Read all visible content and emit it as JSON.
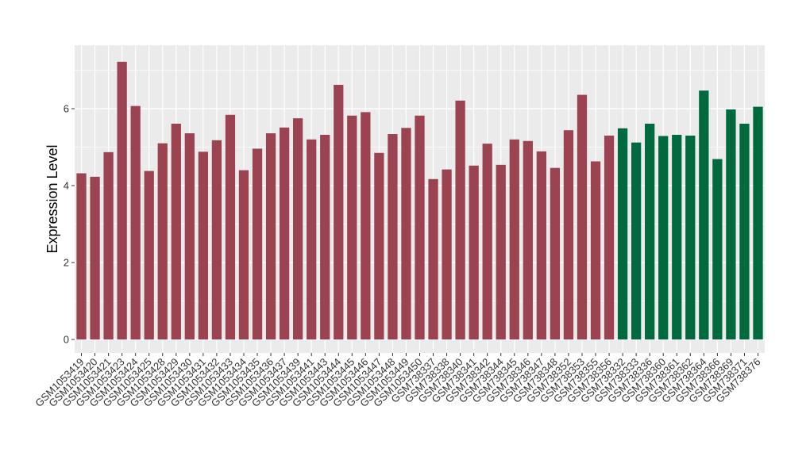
{
  "chart_data": {
    "type": "bar",
    "ylabel": "Expression Level",
    "xlabel": "",
    "ylim": [
      -0.35,
      7.65
    ],
    "yticks": [
      0,
      2,
      4,
      6
    ],
    "grid": true,
    "colors": {
      "group1": "#9b4350",
      "group2": "#00693e",
      "panel": "#ebebeb",
      "gridline": "#ffffff"
    },
    "categories": [
      "GSM1053419",
      "GSM1053420",
      "GSM1053421",
      "GSM1053423",
      "GSM1053424",
      "GSM1053425",
      "GSM1053428",
      "GSM1053429",
      "GSM1053430",
      "GSM1053431",
      "GSM1053432",
      "GSM1053433",
      "GSM1053434",
      "GSM1053435",
      "GSM1053436",
      "GSM1053437",
      "GSM1053439",
      "GSM1053441",
      "GSM1053443",
      "GSM1053444",
      "GSM1053445",
      "GSM1053446",
      "GSM1053447",
      "GSM1053448",
      "GSM1053449",
      "GSM1053450",
      "GSM738337",
      "GSM738338",
      "GSM738340",
      "GSM738341",
      "GSM738342",
      "GSM738344",
      "GSM738345",
      "GSM738346",
      "GSM738347",
      "GSM738348",
      "GSM738352",
      "GSM738353",
      "GSM738355",
      "GSM738356",
      "GSM738332",
      "GSM738333",
      "GSM738336",
      "GSM738360",
      "GSM738361",
      "GSM738362",
      "GSM738364",
      "GSM738366",
      "GSM738369",
      "GSM738371",
      "GSM738376"
    ],
    "values": [
      4.32,
      4.23,
      4.87,
      7.22,
      6.07,
      4.38,
      5.1,
      5.61,
      5.36,
      4.88,
      5.18,
      5.84,
      4.4,
      4.96,
      5.36,
      5.51,
      5.75,
      5.2,
      5.32,
      6.62,
      5.82,
      5.91,
      4.85,
      5.34,
      5.5,
      5.82,
      4.17,
      4.42,
      6.21,
      4.52,
      5.09,
      4.54,
      5.2,
      5.16,
      4.89,
      4.46,
      5.44,
      6.36,
      4.63,
      5.3,
      5.49,
      5.12,
      5.61,
      5.29,
      5.32,
      5.3,
      6.47,
      4.69,
      5.98,
      5.61,
      6.05
    ],
    "groups": [
      1,
      1,
      1,
      1,
      1,
      1,
      1,
      1,
      1,
      1,
      1,
      1,
      1,
      1,
      1,
      1,
      1,
      1,
      1,
      1,
      1,
      1,
      1,
      1,
      1,
      1,
      1,
      1,
      1,
      1,
      1,
      1,
      1,
      1,
      1,
      1,
      1,
      1,
      1,
      1,
      2,
      2,
      2,
      2,
      2,
      2,
      2,
      2,
      2,
      2,
      2
    ]
  }
}
